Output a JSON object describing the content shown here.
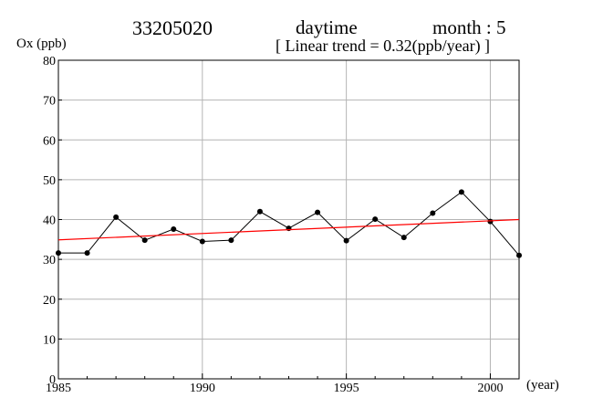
{
  "chart_data": {
    "type": "line",
    "title": {
      "station": "33205020",
      "period": "daytime",
      "month": "month : 5"
    },
    "subtitle": "[ Linear trend = 0.32(ppb/year) ]",
    "ylabel": "Ox (ppb)",
    "xlabel": "(year)",
    "xlim": [
      1985,
      2001
    ],
    "ylim": [
      0,
      80
    ],
    "xticks": [
      1985,
      1990,
      1995,
      2000
    ],
    "yticks": [
      0,
      10,
      20,
      30,
      40,
      50,
      60,
      70,
      80
    ],
    "grid": true,
    "x": [
      1985,
      1986,
      1987,
      1988,
      1989,
      1990,
      1991,
      1992,
      1993,
      1994,
      1995,
      1996,
      1997,
      1998,
      1999,
      2000,
      2001
    ],
    "series": [
      {
        "values": [
          31.6,
          31.6,
          40.6,
          34.8,
          37.6,
          34.5,
          34.8,
          42.0,
          37.8,
          41.8,
          34.7,
          40.1,
          35.5,
          41.6,
          46.9,
          39.5,
          31.0
        ],
        "color": "#000000",
        "marker": "dot"
      }
    ],
    "trend": {
      "slope_ppb_per_year": 0.32,
      "start": [
        1985,
        34.9
      ],
      "end": [
        2001,
        40.0
      ],
      "color": "#ff0000"
    }
  }
}
